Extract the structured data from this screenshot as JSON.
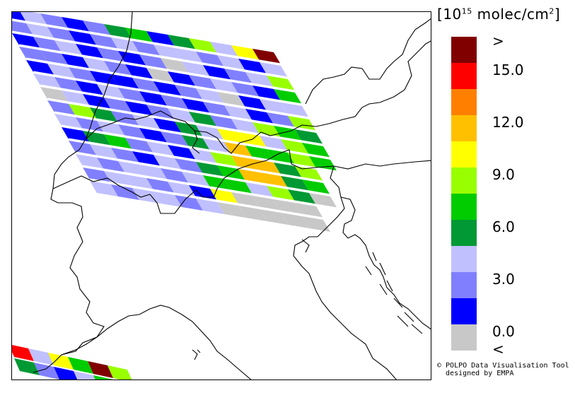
{
  "legend": {
    "unit_base": "10",
    "unit_exp": "15",
    "unit_rest": " molec/cm",
    "unit_sq": "2",
    "bins": [
      {
        "label": "",
        "color": "#800000"
      },
      {
        "label": "",
        "color": "#ff0000"
      },
      {
        "label": "",
        "color": "#ff8000"
      },
      {
        "label": "",
        "color": "#ffc000"
      },
      {
        "label": "",
        "color": "#ffff00"
      },
      {
        "label": "",
        "color": "#99ff00"
      },
      {
        "label": "",
        "color": "#00cc00"
      },
      {
        "label": "",
        "color": "#009933"
      },
      {
        "label": "",
        "color": "#c0c0ff"
      },
      {
        "label": "",
        "color": "#8080ff"
      },
      {
        "label": "",
        "color": "#0000ff"
      },
      {
        "label": "",
        "color": "#c8c8c8"
      }
    ],
    "ticks": [
      {
        "text": ">"
      },
      {
        "text": "15.0"
      },
      {
        "text": "12.0"
      },
      {
        "text": "9.0"
      },
      {
        "text": "6.0"
      },
      {
        "text": "3.0"
      },
      {
        "text": "0.0"
      },
      {
        "text": "<"
      }
    ]
  },
  "credit": {
    "line1": "© POLPO Data Visualisation Tool",
    "line2": "  designed by EMPA"
  }
}
